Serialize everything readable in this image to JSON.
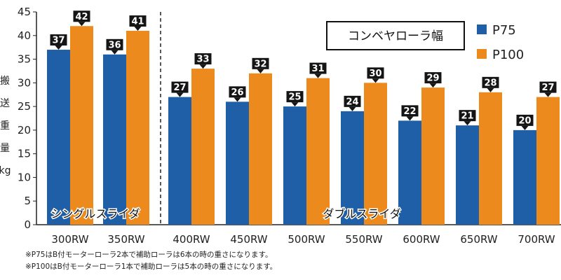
{
  "chart_data": {
    "type": "bar",
    "title": "コンベヤローラ幅",
    "ylabel": "搬送重量kg",
    "ylim": [
      0,
      45
    ],
    "yticks": [
      0,
      5,
      10,
      15,
      20,
      25,
      30,
      35,
      40,
      45
    ],
    "categories": [
      "300RW",
      "350RW",
      "400RW",
      "450RW",
      "500RW",
      "550RW",
      "600RW",
      "650RW",
      "700RW"
    ],
    "series": [
      {
        "name": "P75",
        "color": "#1f5fa8",
        "values": [
          37,
          36,
          27,
          26,
          25,
          24,
          22,
          21,
          20
        ]
      },
      {
        "name": "P100",
        "color": "#ec8a1d",
        "values": [
          42,
          41,
          33,
          32,
          31,
          30,
          29,
          28,
          27
        ]
      }
    ],
    "groups": [
      {
        "label": "シングルスライダ",
        "range": [
          0,
          1
        ]
      },
      {
        "label": "ダブルスライダ",
        "range": [
          2,
          8
        ]
      }
    ],
    "legend_position": "top-right",
    "grid": false
  },
  "notes": [
    "※P75はB付モーターローラ2本で補助ローラは6本の時の重さになります。",
    "※P100はB付モーターローラ1本で補助ローラは5本の時の重さになります。"
  ]
}
